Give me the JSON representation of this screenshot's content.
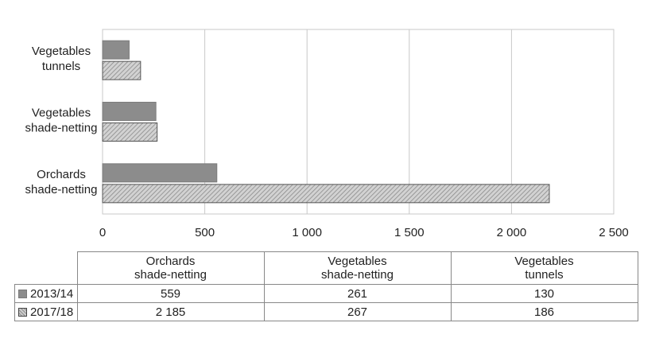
{
  "chart_data": {
    "type": "bar",
    "orientation": "horizontal",
    "categories": [
      "Orchards shade-netting",
      "Vegetables shade-netting",
      "Vegetables tunnels"
    ],
    "category_lines": [
      [
        "Orchards",
        "shade-netting"
      ],
      [
        "Vegetables",
        "shade-netting"
      ],
      [
        "Vegetables",
        "tunnels"
      ]
    ],
    "series": [
      {
        "name": "2013/14",
        "values": [
          559,
          261,
          130
        ],
        "color": "#8c8c8c",
        "pattern": "solid"
      },
      {
        "name": "2017/18",
        "values": [
          2185,
          267,
          186
        ],
        "color": "#c8c8c8",
        "pattern": "hatched"
      }
    ],
    "value_labels": [
      [
        "559",
        "261",
        "130"
      ],
      [
        "2 185",
        "267",
        "186"
      ]
    ],
    "x_ticks": [
      0,
      500,
      1000,
      1500,
      2000,
      2500
    ],
    "x_tick_labels": [
      "0",
      "500",
      "1 000",
      "1 500",
      "2 000",
      "2 500"
    ],
    "xlim": [
      0,
      2500
    ],
    "grid": true,
    "legend": "data table below chart",
    "title": "",
    "xlabel": "",
    "ylabel": ""
  }
}
